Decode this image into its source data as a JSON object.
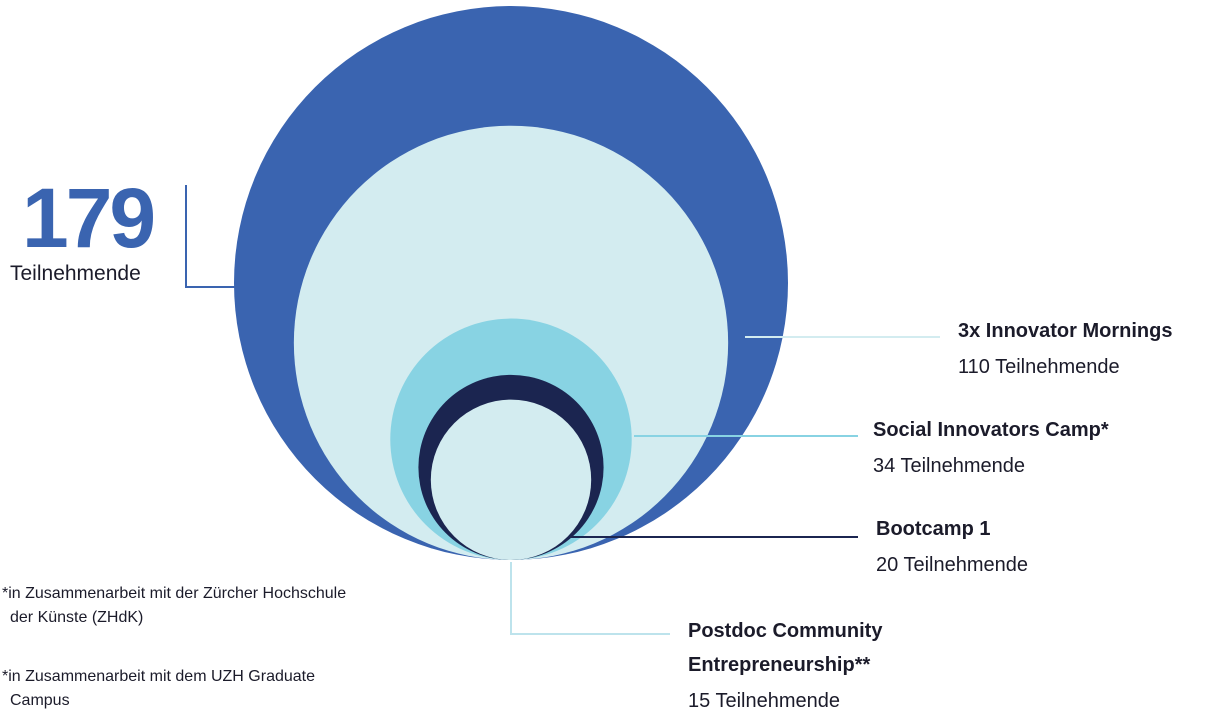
{
  "chart_data": {
    "type": "bubble",
    "total": 179,
    "total_label": "Teilnehmende",
    "total_color": "#3a64b0",
    "categories": [
      "3x Innovator Mornings",
      "Social Innovators Camp*",
      "Bootcamp 1",
      "Postdoc Community Entrepreneurship**"
    ],
    "values": [
      110,
      34,
      20,
      15
    ],
    "value_labels": [
      "110 Teilnehmende",
      "34 Teilnehmende",
      "20 Teilnehmende",
      "15 Teilnehmende"
    ],
    "colors": [
      "#d3ecf0",
      "#88d3e3",
      "#1b2550",
      "#d3ecf0"
    ],
    "footnotes": [
      "*in Zusammenarbeit mit der Zürcher Hochschule der Künste (ZHdK)",
      "*in Zusammenarbeit mit dem UZH Graduate Campus"
    ]
  }
}
